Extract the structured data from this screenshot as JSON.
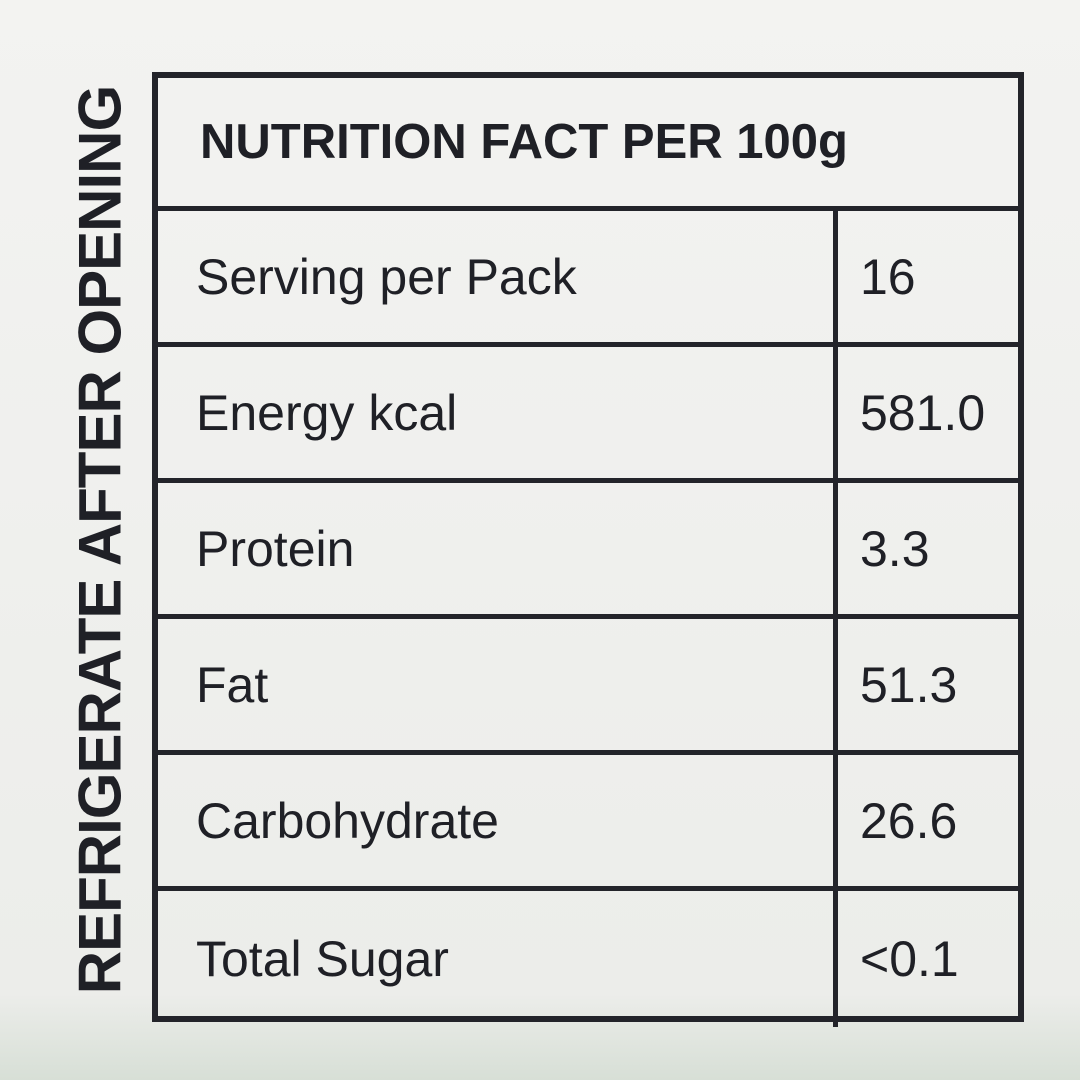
{
  "side_text": "REFRIGERATE AFTER OPENING",
  "table": {
    "title": "NUTRITION FACT PER 100g",
    "rows": [
      [
        "Serving per Pack",
        "16"
      ],
      [
        "Energy kcal",
        "581.0"
      ],
      [
        "Protein",
        "3.3"
      ],
      [
        "Fat",
        "51.3"
      ],
      [
        "Carbohydrate",
        "26.6"
      ],
      [
        "Total Sugar",
        "<0.1"
      ]
    ]
  }
}
